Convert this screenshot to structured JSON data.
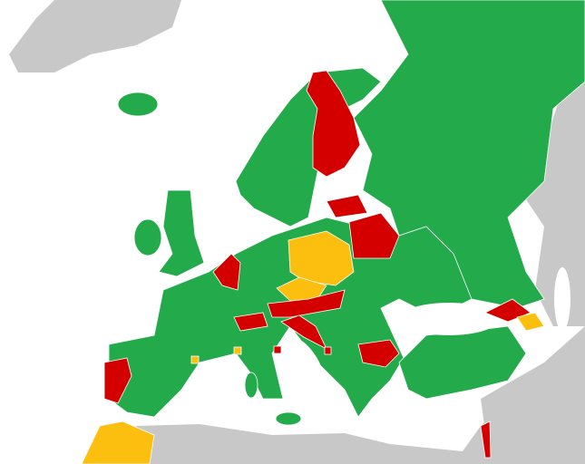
{
  "map": {
    "status_colors": {
      "green": "#23ab4b",
      "red": "#d40000",
      "yellow": "#fdbf0f",
      "no_data": "#c8c8c8",
      "water": "#ffffff"
    },
    "regions": {
      "iceland": "green",
      "russia": "green",
      "scandinavia": "green",
      "finland": "red",
      "united-kingdom": "green",
      "ireland": "green",
      "mainland-europe": "green",
      "turkey": "green",
      "sardinia": "green",
      "sicily": "green",
      "poland": "yellow",
      "czech-republic": "yellow",
      "netherlands": "red",
      "switzerland": "red",
      "austria": "red",
      "slovenia-croatia": "red",
      "latvia": "red",
      "belarus": "red",
      "bulgaria": "red",
      "portugal": "red",
      "georgia": "red",
      "armenia": "yellow",
      "morocco": "yellow",
      "israel": "red",
      "montenegro": "red",
      "andorra": "yellow",
      "monaco": "yellow",
      "san-marino": "red"
    }
  }
}
